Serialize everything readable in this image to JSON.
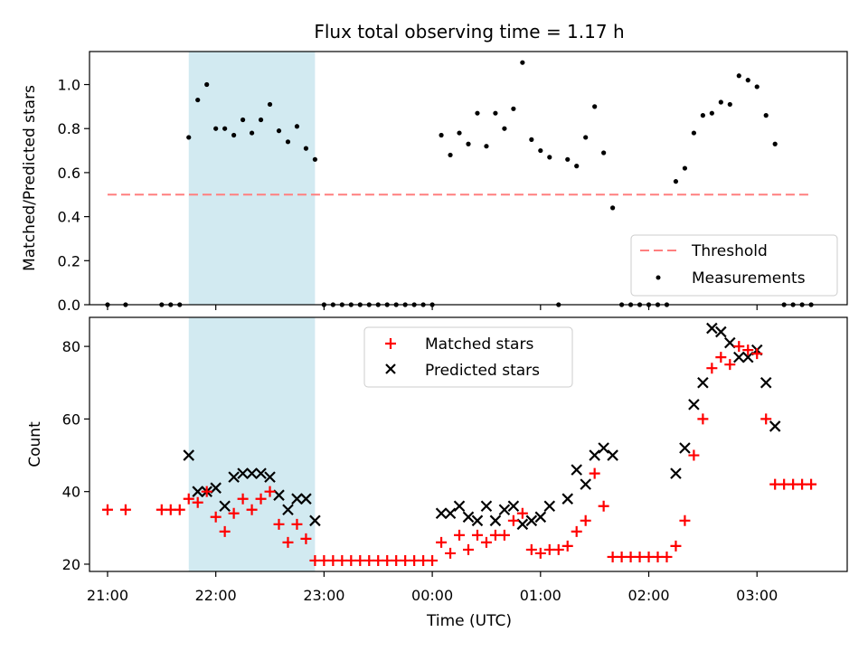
{
  "title": "Flux total observing time = 1.17 h",
  "colors": {
    "threshold": "#ff7f7f",
    "measurements": "#000000",
    "matched": "#ff0000",
    "predicted": "#000000",
    "shade": "#add8e6"
  },
  "chart_data": [
    {
      "type": "scatter",
      "ylabel": "Matched/Predicted stars",
      "ylim": [
        0,
        1.15
      ],
      "yticks": [
        "0.0",
        "0.2",
        "0.4",
        "0.6",
        "0.8",
        "1.0"
      ],
      "xlim": [
        "20:50",
        "03:50"
      ],
      "shaded_interval": [
        "21:45",
        "22:55"
      ],
      "legend": {
        "placement": "lower-right",
        "entries": [
          "Threshold",
          "Measurements"
        ]
      },
      "threshold": {
        "name": "Threshold",
        "value": 0.5,
        "x_range": [
          "21:00",
          "03:30"
        ]
      },
      "measurements": {
        "name": "Measurements",
        "points": [
          [
            "21:00",
            0
          ],
          [
            "21:10",
            0
          ],
          [
            "21:30",
            0
          ],
          [
            "21:35",
            0
          ],
          [
            "21:40",
            0
          ],
          [
            "21:45",
            0.76
          ],
          [
            "21:50",
            0.93
          ],
          [
            "21:55",
            1.0
          ],
          [
            "22:00",
            0.8
          ],
          [
            "22:05",
            0.8
          ],
          [
            "22:10",
            0.77
          ],
          [
            "22:15",
            0.84
          ],
          [
            "22:20",
            0.78
          ],
          [
            "22:25",
            0.84
          ],
          [
            "22:30",
            0.91
          ],
          [
            "22:35",
            0.79
          ],
          [
            "22:40",
            0.74
          ],
          [
            "22:45",
            0.81
          ],
          [
            "22:50",
            0.71
          ],
          [
            "22:55",
            0.66
          ],
          [
            "23:00",
            0
          ],
          [
            "23:05",
            0
          ],
          [
            "23:10",
            0
          ],
          [
            "23:15",
            0
          ],
          [
            "23:20",
            0
          ],
          [
            "23:25",
            0
          ],
          [
            "23:30",
            0
          ],
          [
            "23:35",
            0
          ],
          [
            "23:40",
            0
          ],
          [
            "23:45",
            0
          ],
          [
            "23:50",
            0
          ],
          [
            "23:55",
            0
          ],
          [
            "00:00",
            0
          ],
          [
            "00:05",
            0.77
          ],
          [
            "00:10",
            0.68
          ],
          [
            "00:15",
            0.78
          ],
          [
            "00:20",
            0.73
          ],
          [
            "00:25",
            0.87
          ],
          [
            "00:30",
            0.72
          ],
          [
            "00:35",
            0.87
          ],
          [
            "00:40",
            0.8
          ],
          [
            "00:45",
            0.89
          ],
          [
            "00:50",
            1.1
          ],
          [
            "00:55",
            0.75
          ],
          [
            "01:00",
            0.7
          ],
          [
            "01:05",
            0.67
          ],
          [
            "01:10",
            0
          ],
          [
            "01:15",
            0.66
          ],
          [
            "01:20",
            0.63
          ],
          [
            "01:25",
            0.76
          ],
          [
            "01:30",
            0.9
          ],
          [
            "01:35",
            0.69
          ],
          [
            "01:40",
            0.44
          ],
          [
            "01:45",
            0
          ],
          [
            "01:50",
            0
          ],
          [
            "01:55",
            0
          ],
          [
            "02:00",
            0
          ],
          [
            "02:05",
            0
          ],
          [
            "02:10",
            0
          ],
          [
            "02:15",
            0.56
          ],
          [
            "02:20",
            0.62
          ],
          [
            "02:25",
            0.78
          ],
          [
            "02:30",
            0.86
          ],
          [
            "02:35",
            0.87
          ],
          [
            "02:40",
            0.92
          ],
          [
            "02:45",
            0.91
          ],
          [
            "02:50",
            1.04
          ],
          [
            "02:55",
            1.02
          ],
          [
            "03:00",
            0.99
          ],
          [
            "03:05",
            0.86
          ],
          [
            "03:10",
            0.73
          ],
          [
            "03:15",
            0
          ],
          [
            "03:20",
            0
          ],
          [
            "03:25",
            0
          ],
          [
            "03:30",
            0
          ]
        ]
      }
    },
    {
      "type": "scatter",
      "xlabel": "Time (UTC)",
      "ylabel": "Count",
      "ylim": [
        18,
        88
      ],
      "yticks": [
        "20",
        "40",
        "60",
        "80"
      ],
      "xlim": [
        "20:50",
        "03:50"
      ],
      "xticks": [
        "21:00",
        "22:00",
        "23:00",
        "00:00",
        "01:00",
        "02:00",
        "03:00"
      ],
      "shaded_interval": [
        "21:45",
        "22:55"
      ],
      "legend": {
        "placement": "upper-center",
        "entries": [
          "Matched stars",
          "Predicted stars"
        ]
      },
      "series": [
        {
          "name": "Matched stars",
          "marker": "plus",
          "points": [
            [
              "21:00",
              35
            ],
            [
              "21:10",
              35
            ],
            [
              "21:30",
              35
            ],
            [
              "21:35",
              35
            ],
            [
              "21:40",
              35
            ],
            [
              "21:45",
              38
            ],
            [
              "21:50",
              37
            ],
            [
              "21:55",
              40
            ],
            [
              "22:00",
              33
            ],
            [
              "22:05",
              29
            ],
            [
              "22:10",
              34
            ],
            [
              "22:15",
              38
            ],
            [
              "22:20",
              35
            ],
            [
              "22:25",
              38
            ],
            [
              "22:30",
              40
            ],
            [
              "22:35",
              31
            ],
            [
              "22:40",
              26
            ],
            [
              "22:45",
              31
            ],
            [
              "22:50",
              27
            ],
            [
              "22:55",
              21
            ],
            [
              "23:00",
              21
            ],
            [
              "23:05",
              21
            ],
            [
              "23:10",
              21
            ],
            [
              "23:15",
              21
            ],
            [
              "23:20",
              21
            ],
            [
              "23:25",
              21
            ],
            [
              "23:30",
              21
            ],
            [
              "23:35",
              21
            ],
            [
              "23:40",
              21
            ],
            [
              "23:45",
              21
            ],
            [
              "23:50",
              21
            ],
            [
              "23:55",
              21
            ],
            [
              "00:00",
              21
            ],
            [
              "00:05",
              26
            ],
            [
              "00:10",
              23
            ],
            [
              "00:15",
              28
            ],
            [
              "00:20",
              24
            ],
            [
              "00:25",
              28
            ],
            [
              "00:30",
              26
            ],
            [
              "00:35",
              28
            ],
            [
              "00:40",
              28
            ],
            [
              "00:45",
              32
            ],
            [
              "00:50",
              34
            ],
            [
              "00:55",
              24
            ],
            [
              "01:00",
              23
            ],
            [
              "01:05",
              24
            ],
            [
              "01:10",
              24
            ],
            [
              "01:15",
              25
            ],
            [
              "01:20",
              29
            ],
            [
              "01:25",
              32
            ],
            [
              "01:30",
              45
            ],
            [
              "01:35",
              36
            ],
            [
              "01:40",
              22
            ],
            [
              "01:45",
              22
            ],
            [
              "01:50",
              22
            ],
            [
              "01:55",
              22
            ],
            [
              "02:00",
              22
            ],
            [
              "02:05",
              22
            ],
            [
              "02:10",
              22
            ],
            [
              "02:15",
              25
            ],
            [
              "02:20",
              32
            ],
            [
              "02:25",
              50
            ],
            [
              "02:30",
              60
            ],
            [
              "02:35",
              74
            ],
            [
              "02:40",
              77
            ],
            [
              "02:45",
              75
            ],
            [
              "02:50",
              80
            ],
            [
              "02:55",
              79
            ],
            [
              "03:00",
              78
            ],
            [
              "03:05",
              60
            ],
            [
              "03:10",
              42
            ],
            [
              "03:15",
              42
            ],
            [
              "03:20",
              42
            ],
            [
              "03:25",
              42
            ],
            [
              "03:30",
              42
            ]
          ]
        },
        {
          "name": "Predicted stars",
          "marker": "x",
          "points": [
            [
              "21:45",
              50
            ],
            [
              "21:50",
              40
            ],
            [
              "21:55",
              40
            ],
            [
              "22:00",
              41
            ],
            [
              "22:05",
              36
            ],
            [
              "22:10",
              44
            ],
            [
              "22:15",
              45
            ],
            [
              "22:20",
              45
            ],
            [
              "22:25",
              45
            ],
            [
              "22:30",
              44
            ],
            [
              "22:35",
              39
            ],
            [
              "22:40",
              35
            ],
            [
              "22:45",
              38
            ],
            [
              "22:50",
              38
            ],
            [
              "22:55",
              32
            ],
            [
              "00:05",
              34
            ],
            [
              "00:10",
              34
            ],
            [
              "00:15",
              36
            ],
            [
              "00:20",
              33
            ],
            [
              "00:25",
              32
            ],
            [
              "00:30",
              36
            ],
            [
              "00:35",
              32
            ],
            [
              "00:40",
              35
            ],
            [
              "00:45",
              36
            ],
            [
              "00:50",
              31
            ],
            [
              "00:55",
              32
            ],
            [
              "01:00",
              33
            ],
            [
              "01:05",
              36
            ],
            [
              "01:15",
              38
            ],
            [
              "01:20",
              46
            ],
            [
              "01:25",
              42
            ],
            [
              "01:30",
              50
            ],
            [
              "01:35",
              52
            ],
            [
              "01:40",
              50
            ],
            [
              "02:15",
              45
            ],
            [
              "02:20",
              52
            ],
            [
              "02:25",
              64
            ],
            [
              "02:30",
              70
            ],
            [
              "02:35",
              85
            ],
            [
              "02:40",
              84
            ],
            [
              "02:45",
              81
            ],
            [
              "02:50",
              77
            ],
            [
              "02:55",
              77
            ],
            [
              "03:00",
              79
            ],
            [
              "03:05",
              70
            ],
            [
              "03:10",
              58
            ]
          ]
        }
      ]
    }
  ]
}
